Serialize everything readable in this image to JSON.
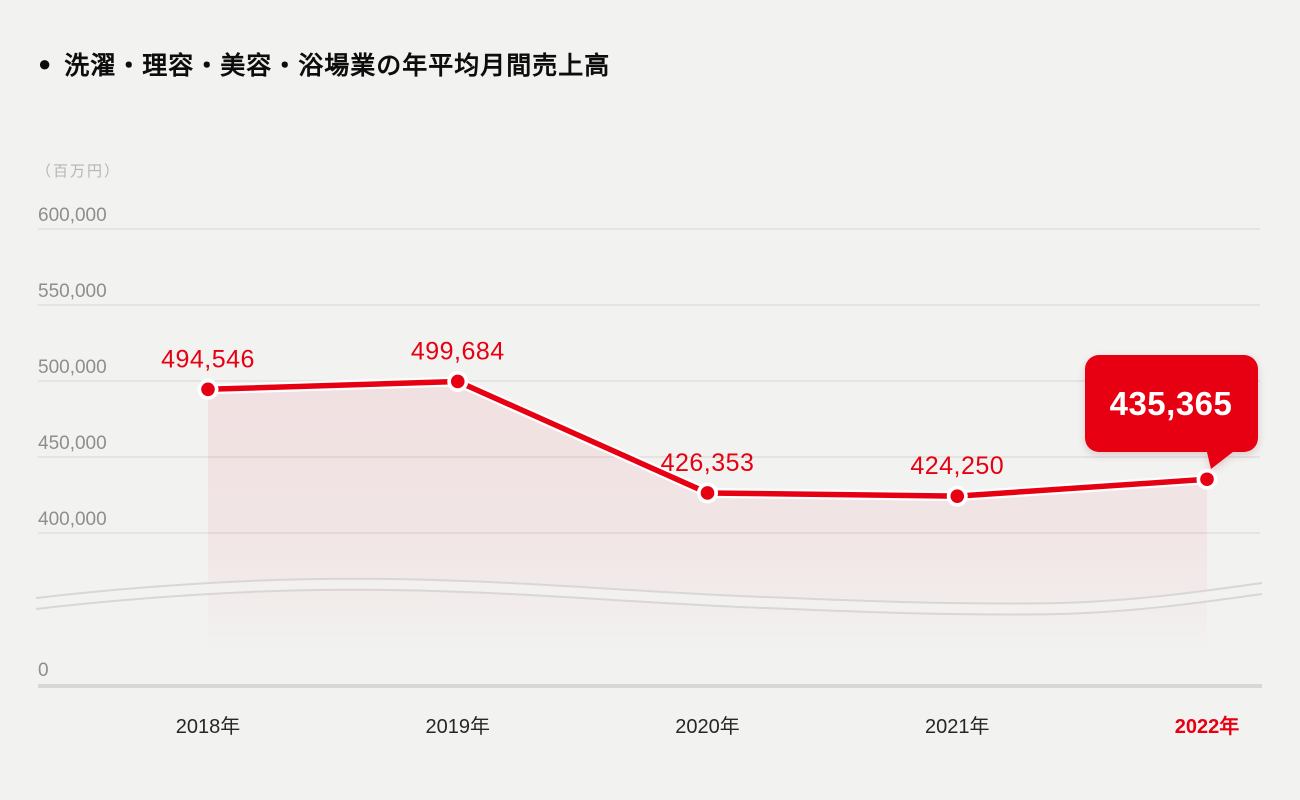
{
  "title": {
    "bullet": "●",
    "text": "洗濯・理容・美容・浴場業の年平均月間売上高"
  },
  "colors": {
    "accent_red": "#e60012",
    "background": "#f2f2f1",
    "grid_line": "#dcdbd9",
    "zero_line": "#d9d8d6",
    "break_line": "#d8d7d5",
    "y_text": "#8e8e8c",
    "x_text": "#262626",
    "unit_text": "#b5b5b3",
    "callout_text": "#ffffff"
  },
  "chart_data": {
    "type": "line",
    "title": "洗濯・理容・美容・浴場業の年平均月間売上高",
    "unit_label": "（百万円）",
    "categories": [
      "2018年",
      "2019年",
      "2020年",
      "2021年",
      "2022年"
    ],
    "values": [
      494546,
      499684,
      426353,
      424250,
      435365
    ],
    "value_labels": [
      "494,546",
      "499,684",
      "426,353",
      "424,250",
      "435,365"
    ],
    "highlight_index": 4,
    "callout": {
      "value_label": "435,365"
    },
    "y_tick_values": [
      600000,
      550000,
      500000,
      450000,
      400000
    ],
    "y_tick_labels": [
      "600,000",
      "550,000",
      "500,000",
      "450,000",
      "400,000"
    ],
    "zero_label": "0",
    "axis_break": true,
    "grid": "horizontal-only",
    "legend": "none",
    "area_fill": true,
    "ylim_display": [
      400000,
      620000
    ]
  }
}
